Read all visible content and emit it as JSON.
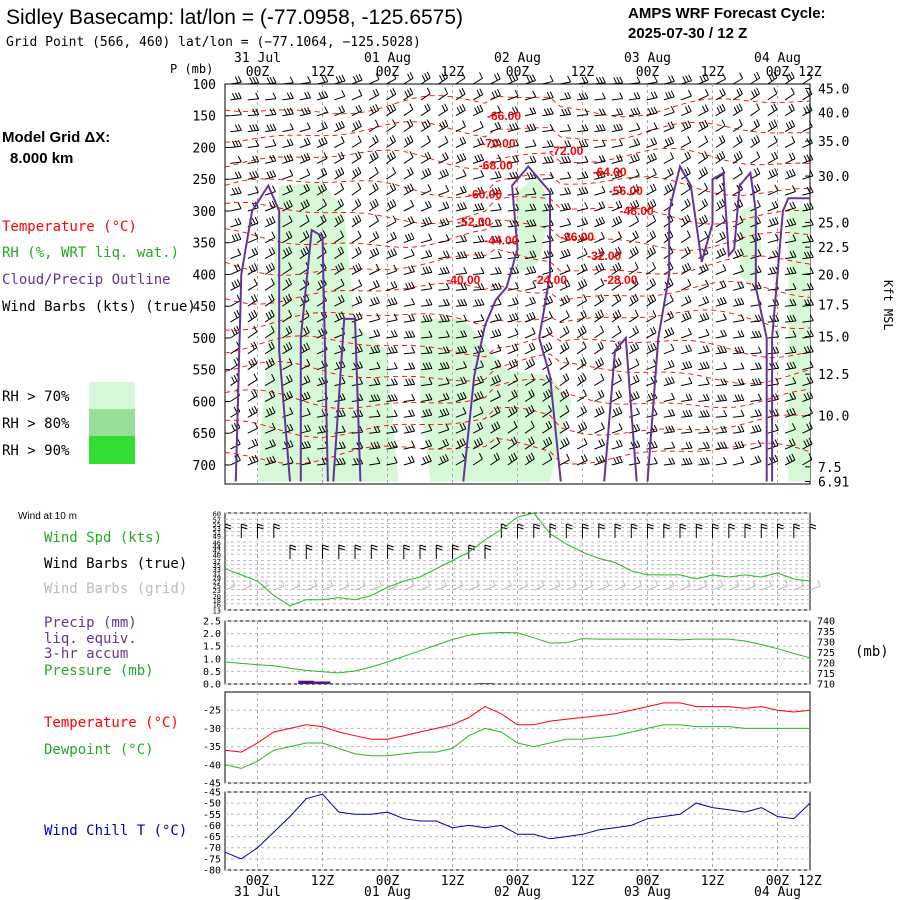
{
  "header": {
    "title": "Sidley Basecamp:  lat/lon = (-77.0958, -125.6575)",
    "subtitle": "Grid Point (566, 460) lat/lon = (−77.1064, −125.5028)",
    "cycle_label": "AMPS WRF Forecast Cycle:",
    "cycle_value": "2025-07-30 / 12  Z"
  },
  "sidebar": {
    "grid_label": "Model Grid ΔX:",
    "grid_value": "8.000 km",
    "legend_temperature": "Temperature (°C)",
    "legend_rh": "RH (%, WRT liq. wat.)",
    "legend_cloud": "Cloud/Precip Outline",
    "legend_wind": "Wind Barbs (kts) (true)",
    "rh_70": "RH > 70%",
    "rh_80": "RH > 80%",
    "rh_90": "RH > 90%",
    "colors": {
      "rh70": "#d6f8d6",
      "rh80": "#98e098",
      "rh90": "#33dd33"
    }
  },
  "time_axis": {
    "dates": [
      "31 Jul",
      "01 Aug",
      "02 Aug",
      "03 Aug",
      "04 Aug"
    ],
    "ticks": [
      "00Z",
      "12Z",
      "00Z",
      "12Z",
      "00Z",
      "12Z",
      "00Z",
      "12Z",
      "00Z",
      "12Z"
    ]
  },
  "colors": {
    "temperature": "#ff0000",
    "dewpoint": "#00cc00",
    "rh_line": "#22aa22",
    "cloud": "#663399",
    "wind_chill": "#0000aa",
    "precip": "#551188",
    "grid": "#aaaaaa"
  },
  "chart_data": [
    {
      "type": "heatmap",
      "name": "cross-section",
      "ylabel": "P (mb)",
      "yticks": [
        100,
        150,
        200,
        250,
        300,
        350,
        400,
        450,
        500,
        550,
        600,
        650,
        700
      ],
      "right_label": "Kft MSL",
      "right_ticks": [
        {
          "label": "45.0",
          "p": 107
        },
        {
          "label": "40.0",
          "p": 145
        },
        {
          "label": "35.0",
          "p": 190
        },
        {
          "label": "30.0",
          "p": 245
        },
        {
          "label": "25.0",
          "p": 318
        },
        {
          "label": "22.5",
          "p": 357
        },
        {
          "label": "20.0",
          "p": 400
        },
        {
          "label": "17.5",
          "p": 447
        },
        {
          "label": "15.0",
          "p": 498
        },
        {
          "label": "12.5",
          "p": 557
        },
        {
          "label": "10.0",
          "p": 622
        },
        {
          "label": "7.5",
          "p": 703
        },
        {
          "label": "6.91",
          "p": 726
        }
      ],
      "ylim": [
        100,
        730
      ],
      "xlim_hours": [
        0,
        108
      ],
      "temp_labels": [
        {
          "text": "-66.00",
          "hour": 51.5,
          "p": 157
        },
        {
          "text": "-70.00",
          "hour": 50.5,
          "p": 200
        },
        {
          "text": "-72.00",
          "hour": 63,
          "p": 212
        },
        {
          "text": "-68.00",
          "hour": 50,
          "p": 235
        },
        {
          "text": "-64.00",
          "hour": 71,
          "p": 245
        },
        {
          "text": "-60.00",
          "hour": 48,
          "p": 280
        },
        {
          "text": "-56.00",
          "hour": 74,
          "p": 275
        },
        {
          "text": "-48.00",
          "hour": 76,
          "p": 306
        },
        {
          "text": "-52.00",
          "hour": 46,
          "p": 324
        },
        {
          "text": "-44.00",
          "hour": 51,
          "p": 353
        },
        {
          "text": "-36.00",
          "hour": 65,
          "p": 347
        },
        {
          "text": "-32.00",
          "hour": 70,
          "p": 377
        },
        {
          "text": "-40.00",
          "hour": 44,
          "p": 415
        },
        {
          "text": "-24.00",
          "hour": 60,
          "p": 415
        },
        {
          "text": "-28.00",
          "hour": 73,
          "p": 415
        }
      ]
    },
    {
      "type": "line",
      "name": "wind-10m",
      "title": "Wind at 10 m",
      "legend": [
        "Wind Spd (kts)",
        "Wind Barbs (true)",
        "Wind Barbs (grid)"
      ],
      "yticks": [
        13,
        16,
        18,
        20,
        23,
        25,
        27,
        29,
        31,
        33,
        35,
        37,
        40,
        42,
        44,
        46,
        49,
        51,
        53,
        55,
        57,
        60
      ],
      "ylim": [
        13,
        60
      ],
      "x_hours": [
        0,
        3,
        6,
        9,
        12,
        15,
        18,
        21,
        24,
        27,
        30,
        33,
        36,
        39,
        42,
        45,
        48,
        51,
        54,
        57,
        60,
        63,
        66,
        69,
        72,
        75,
        78,
        81,
        84,
        87,
        90,
        93,
        96,
        99,
        102,
        105,
        108
      ],
      "wind_speed": [
        33,
        30,
        27,
        20,
        15,
        18,
        18,
        19,
        18,
        20,
        24,
        27,
        29,
        33,
        37,
        41,
        47,
        52,
        58,
        60,
        50,
        45,
        41,
        38,
        36,
        32,
        30,
        30,
        30,
        28,
        30,
        29,
        30,
        29,
        31,
        28,
        27
      ]
    },
    {
      "type": "line",
      "name": "precip-pressure",
      "legend": [
        "Precip (mm)",
        "liq. equiv.",
        "3-hr accum",
        "Pressure (mb)"
      ],
      "yticks_left": [
        0.0,
        0.5,
        1.0,
        1.5,
        2.0,
        2.5
      ],
      "yticks_right": [
        710,
        715,
        720,
        725,
        730,
        735,
        740
      ],
      "right_unit": "(mb)",
      "ylim_left": [
        0,
        2.5
      ],
      "ylim_right": [
        710,
        740
      ],
      "x_hours": [
        0,
        3,
        6,
        9,
        12,
        15,
        18,
        21,
        24,
        27,
        30,
        33,
        36,
        39,
        42,
        45,
        48,
        51,
        54,
        57,
        60,
        63,
        66,
        69,
        72,
        75,
        78,
        81,
        84,
        87,
        90,
        93,
        96,
        99,
        102,
        105,
        108
      ],
      "pressure": [
        720.5,
        719.8,
        719.2,
        718.7,
        717.5,
        716.5,
        715.8,
        715.3,
        716.2,
        718.1,
        720.5,
        723.2,
        725.8,
        728.5,
        731.2,
        733.2,
        734.2,
        734.5,
        734.4,
        732.0,
        729.5,
        729.6,
        731.6,
        731.4,
        731.4,
        731.4,
        731.4,
        731.4,
        731.0,
        731.4,
        731.4,
        731.4,
        730.5,
        728.8,
        726.8,
        724.5,
        722.5
      ],
      "precip": [
        0,
        0,
        0,
        0,
        0,
        0.13,
        0.1,
        0,
        0.02,
        0,
        0,
        0,
        0,
        0,
        0,
        0,
        0.03,
        0,
        0,
        0,
        0,
        0,
        0,
        0,
        0,
        0,
        0,
        0,
        0,
        0,
        0,
        0,
        0,
        0,
        0,
        0,
        0
      ]
    },
    {
      "type": "line",
      "name": "temperature-dewpoint",
      "legend": [
        "Temperature (°C)",
        "Dewpoint (°C)"
      ],
      "yticks": [
        -45,
        -40,
        -35,
        -30,
        -25
      ],
      "ylim": [
        -45,
        -20
      ],
      "x_hours": [
        0,
        3,
        6,
        9,
        12,
        15,
        18,
        21,
        24,
        27,
        30,
        33,
        36,
        39,
        42,
        45,
        48,
        51,
        54,
        57,
        60,
        63,
        66,
        69,
        72,
        75,
        78,
        81,
        84,
        87,
        90,
        93,
        96,
        99,
        102,
        105,
        108
      ],
      "temperature": [
        -36,
        -36.5,
        -34,
        -31,
        -30,
        -29,
        -29.5,
        -31,
        -32,
        -33,
        -33,
        -32,
        -31,
        -30,
        -29,
        -27,
        -24,
        -26,
        -29,
        -29,
        -28,
        -27.5,
        -27,
        -26.5,
        -26,
        -25,
        -24,
        -23,
        -23,
        -24,
        -24,
        -24,
        -24.5,
        -24,
        -25,
        -25.5,
        -25
      ],
      "dewpoint": [
        -40,
        -41,
        -39,
        -36,
        -35,
        -34,
        -34,
        -35.5,
        -37,
        -37.5,
        -37.5,
        -37,
        -36.5,
        -36.5,
        -35.5,
        -32,
        -30,
        -31,
        -34,
        -35,
        -34,
        -33,
        -33,
        -32.5,
        -32,
        -31,
        -30,
        -29,
        -29,
        -29.5,
        -29.5,
        -29.5,
        -30,
        -30,
        -30,
        -30,
        -30
      ]
    },
    {
      "type": "line",
      "name": "wind-chill",
      "legend": [
        "Wind Chill T (°C)"
      ],
      "yticks": [
        -80,
        -75,
        -70,
        -65,
        -60,
        -55,
        -50,
        -45
      ],
      "ylim": [
        -80,
        -45
      ],
      "x_hours": [
        0,
        3,
        6,
        9,
        12,
        15,
        18,
        21,
        24,
        27,
        30,
        33,
        36,
        39,
        42,
        45,
        48,
        51,
        54,
        57,
        60,
        63,
        66,
        69,
        72,
        75,
        78,
        81,
        84,
        87,
        90,
        93,
        96,
        99,
        102,
        105,
        108
      ],
      "wind_chill": [
        -72,
        -75,
        -70,
        -63,
        -56,
        -48,
        -46,
        -54,
        -55,
        -55,
        -54,
        -57,
        -58,
        -58,
        -61,
        -60,
        -61,
        -60,
        -64,
        -64,
        -66,
        -65,
        -64,
        -62,
        -61,
        -60,
        -57,
        -56,
        -55,
        -50,
        -52,
        -53,
        -54,
        -52,
        -56,
        -57,
        -50
      ]
    }
  ]
}
